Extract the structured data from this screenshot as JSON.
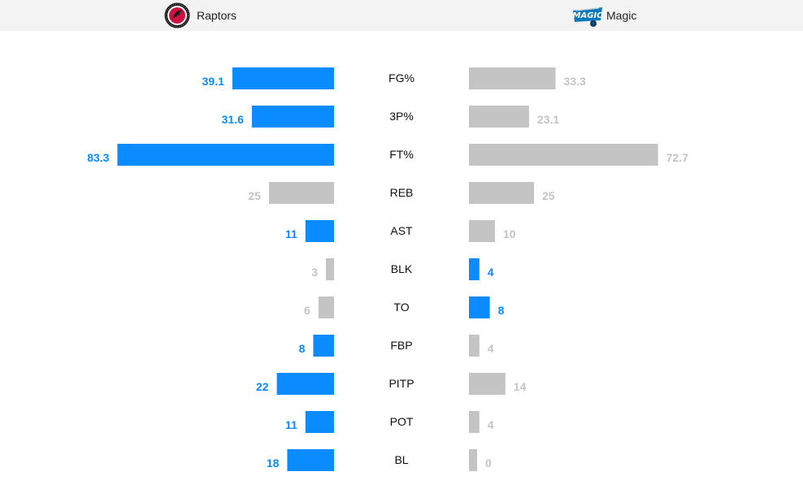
{
  "teams": {
    "left": {
      "name": "Raptors",
      "logo_icon": "raptors-logo-icon"
    },
    "right": {
      "name": "Magic",
      "logo_icon": "magic-logo-icon"
    }
  },
  "colors": {
    "winner": "#0a8bff",
    "loser": "#c4c4c4",
    "winner_text": "#0a8bff",
    "loser_text": "#c4c4c4"
  },
  "chart_data": {
    "type": "bar",
    "categories": [
      "FG%",
      "3P%",
      "FT%",
      "REB",
      "AST",
      "BLK",
      "TO",
      "FBP",
      "PITP",
      "POT",
      "BL"
    ],
    "series": [
      {
        "name": "Raptors",
        "values": [
          39.1,
          31.6,
          83.3,
          25,
          11,
          3,
          6,
          8,
          22,
          11,
          18
        ]
      },
      {
        "name": "Magic",
        "values": [
          33.3,
          23.1,
          72.7,
          25,
          10,
          4,
          8,
          4,
          14,
          4,
          0
        ]
      }
    ],
    "value_labels": {
      "Raptors": [
        "39.1",
        "31.6",
        "83.3",
        "25",
        "11",
        "3",
        "6",
        "8",
        "22",
        "11",
        "18"
      ],
      "Magic": [
        "33.3",
        "23.1",
        "72.7",
        "25",
        "10",
        "4",
        "8",
        "4",
        "14",
        "4",
        "0"
      ]
    },
    "highlighted": {
      "Raptors": [
        true,
        true,
        true,
        false,
        true,
        false,
        false,
        true,
        true,
        true,
        true
      ],
      "Magic": [
        false,
        false,
        false,
        false,
        false,
        true,
        true,
        false,
        false,
        false,
        false
      ]
    },
    "title": "",
    "xlabel": "",
    "ylabel": ""
  }
}
